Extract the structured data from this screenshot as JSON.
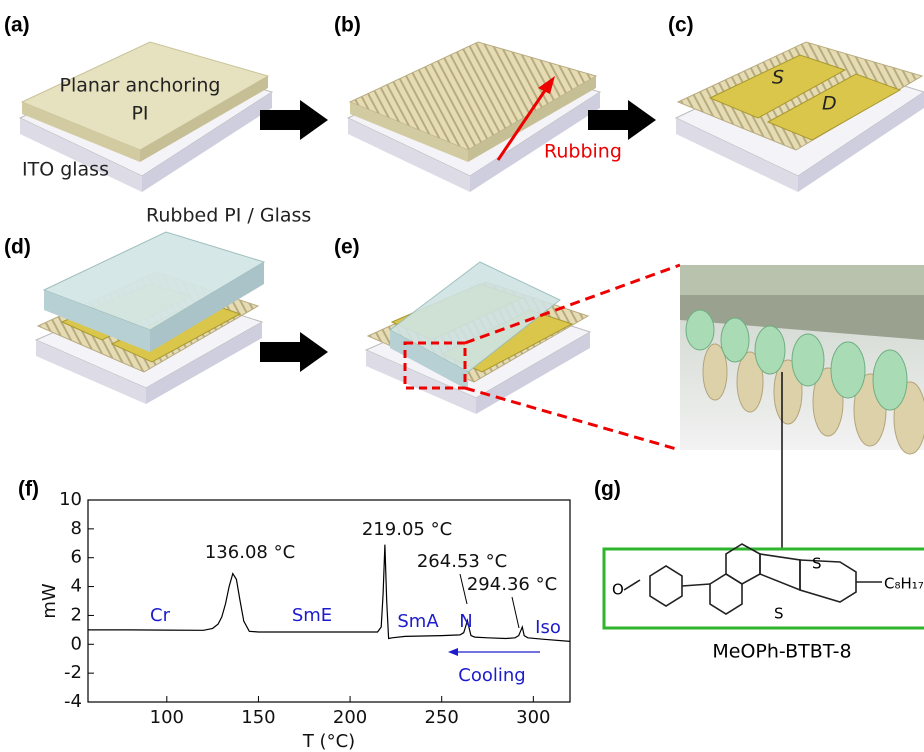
{
  "panels": {
    "labels": [
      "(a)",
      "(b)",
      "(c)",
      "(d)",
      "(e)",
      "(f)",
      "(g)"
    ]
  },
  "diagram": {
    "planar_anchoring": "Planar anchoring",
    "pi": "PI",
    "ito_glass": "ITO glass",
    "rubbing": "Rubbing",
    "source": "S",
    "drain": "D",
    "rubbed_pi_glass": "Rubbed PI / Glass"
  },
  "molecule": {
    "name": "MeOPh-BTBT-8",
    "atoms": [
      "O",
      "S",
      "S"
    ],
    "chain": "C₈H₁₇"
  },
  "chart_data": {
    "type": "line",
    "xlabel": "T (°C)",
    "ylabel": "mW",
    "color": "#000000",
    "x": [
      57,
      80,
      100,
      120,
      125,
      128,
      130,
      132,
      134,
      136,
      138,
      140,
      142,
      145,
      150,
      170,
      200,
      215,
      217,
      218,
      219,
      220,
      221,
      223,
      230,
      250,
      260,
      262,
      263,
      264,
      265,
      266,
      268,
      275,
      285,
      290,
      292,
      293,
      294,
      295,
      297,
      305,
      320
    ],
    "values": [
      1.0,
      1.0,
      0.98,
      0.97,
      1.1,
      1.4,
      1.9,
      2.8,
      4.0,
      4.9,
      4.5,
      3.0,
      1.6,
      0.9,
      0.85,
      0.85,
      0.85,
      0.85,
      1.2,
      3.5,
      6.9,
      3.0,
      0.4,
      0.45,
      0.55,
      0.6,
      0.65,
      0.8,
      1.2,
      1.65,
      1.1,
      0.6,
      0.5,
      0.45,
      0.4,
      0.45,
      0.6,
      0.9,
      1.2,
      0.6,
      0.45,
      0.35,
      0.2
    ],
    "xlim": [
      57,
      320
    ],
    "xticks": [
      100,
      150,
      200,
      250,
      300
    ],
    "ylim": [
      -4,
      10
    ],
    "yticks": [
      -4,
      -2,
      0,
      2,
      4,
      6,
      8,
      10
    ],
    "annotations": [
      "136.08 °C",
      "219.05 °C",
      "264.53 °C",
      "294.36 °C"
    ],
    "phases": [
      "Cr",
      "SmE",
      "SmA",
      "N",
      "Iso"
    ],
    "phase_color": "#1c1ccc",
    "cooling": "Cooling"
  }
}
